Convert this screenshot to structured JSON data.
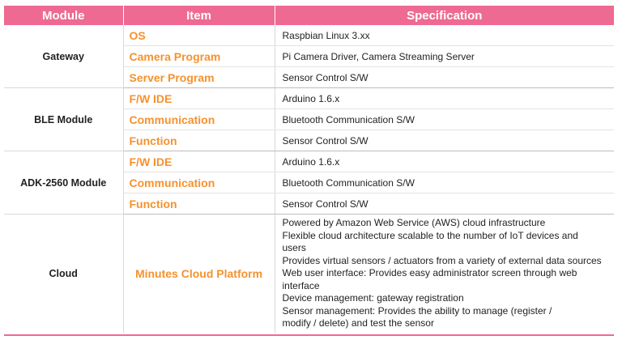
{
  "headers": [
    "Module",
    "Item",
    "Specification"
  ],
  "groups": [
    {
      "module": "Gateway",
      "rows": [
        {
          "item": "OS",
          "spec": "Raspbian Linux 3.xx"
        },
        {
          "item": "Camera Program",
          "spec": "Pi Camera Driver, Camera Streaming Server"
        },
        {
          "item": "Server Program",
          "spec": "Sensor Control S/W"
        }
      ]
    },
    {
      "module": "BLE Module",
      "rows": [
        {
          "item": "F/W IDE",
          "spec": "Arduino 1.6.x"
        },
        {
          "item": "Communication",
          "spec": "Bluetooth Communication S/W"
        },
        {
          "item": "Function",
          "spec": "Sensor Control S/W"
        }
      ]
    },
    {
      "module": "ADK-2560 Module",
      "rows": [
        {
          "item": "F/W IDE",
          "spec": "Arduino 1.6.x"
        },
        {
          "item": "Communication",
          "spec": "Bluetooth Communication S/W"
        },
        {
          "item": "Function",
          "spec": "Sensor Control S/W"
        }
      ]
    }
  ],
  "cloud": {
    "module": "Cloud",
    "item": "Minutes Cloud Platform",
    "spec_lines": [
      "Powered by Amazon Web Service (AWS) cloud infrastructure",
      "Flexible cloud architecture scalable to the number of IoT devices and",
      "users",
      "Provides virtual sensors / actuators from a variety of external data sources",
      "Web user interface: Provides easy administrator screen through web",
      "interface",
      "Device management: gateway registration",
      "Sensor management: Provides the ability to manage (register /",
      "modify / delete) and test the sensor"
    ]
  },
  "colors": {
    "header_bg": "#ee6a93",
    "item_text": "#f5922e"
  }
}
